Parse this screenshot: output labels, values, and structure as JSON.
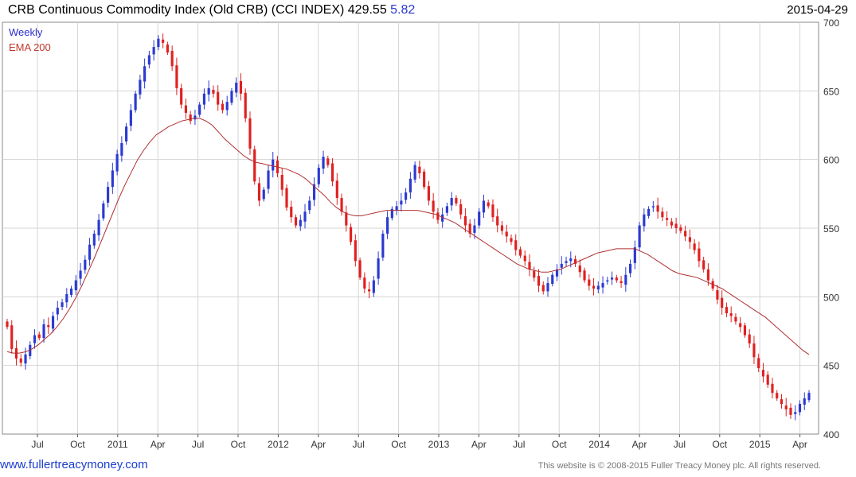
{
  "header": {
    "title": "CRB Continuous Commodity Index (Old CRB) (CCI INDEX) 429.55",
    "change": "5.82",
    "date": "2015-04-29"
  },
  "footer": {
    "site": "www.fullertreacymoney.com",
    "copyright": "This website is © 2008-2015 Fuller Treacy Money plc. All rights reserved."
  },
  "colors": {
    "up": "#2b3ad1",
    "down": "#e02020",
    "ema": "#b03030",
    "grid": "#d4d4d4"
  },
  "chart_data": {
    "type": "candlestick",
    "frequency": "Weekly",
    "legend": [
      "Weekly",
      "EMA 200"
    ],
    "legend_placement": "top-left",
    "grid": true,
    "y_axis": {
      "position": "right",
      "ylim": [
        400,
        700
      ],
      "ticks": [
        400,
        450,
        500,
        550,
        600,
        650,
        700
      ]
    },
    "x_axis": {
      "ticks": [
        "Jul",
        "Oct",
        "2011",
        "Apr",
        "Jul",
        "Oct",
        "2012",
        "Apr",
        "Jul",
        "Oct",
        "2013",
        "Apr",
        "Jul",
        "Oct",
        "2014",
        "Apr",
        "Jul",
        "Oct",
        "2015",
        "Apr"
      ],
      "range": [
        "2010-04",
        "2015-04"
      ]
    },
    "close": [
      478,
      462,
      455,
      452,
      458,
      465,
      472,
      470,
      480,
      478,
      486,
      492,
      496,
      502,
      506,
      512,
      519,
      527,
      538,
      546,
      556,
      568,
      580,
      592,
      604,
      612,
      624,
      636,
      648,
      658,
      668,
      676,
      682,
      688,
      685,
      678,
      668,
      652,
      640,
      634,
      628,
      632,
      640,
      648,
      652,
      648,
      640,
      636,
      642,
      650,
      656,
      648,
      630,
      608,
      584,
      570,
      578,
      592,
      600,
      590,
      578,
      565,
      558,
      552,
      556,
      562,
      570,
      582,
      594,
      602,
      596,
      584,
      572,
      562,
      552,
      540,
      526,
      514,
      506,
      504,
      512,
      528,
      546,
      558,
      564,
      566,
      570,
      576,
      586,
      596,
      590,
      580,
      570,
      562,
      556,
      560,
      566,
      572,
      568,
      560,
      552,
      546,
      552,
      562,
      570,
      566,
      558,
      552,
      548,
      544,
      540,
      534,
      530,
      526,
      520,
      514,
      508,
      504,
      510,
      516,
      520,
      524,
      526,
      528,
      524,
      518,
      512,
      508,
      506,
      508,
      510,
      512,
      514,
      512,
      510,
      516,
      524,
      536,
      552,
      560,
      564,
      566,
      562,
      558,
      556,
      552,
      550,
      548,
      544,
      540,
      534,
      526,
      520,
      512,
      506,
      498,
      492,
      488,
      486,
      482,
      478,
      472,
      466,
      456,
      448,
      442,
      436,
      430,
      426,
      422,
      418,
      414,
      416,
      422,
      426,
      430
    ],
    "ema_200": [
      460,
      459,
      459,
      460,
      462,
      465,
      469,
      473,
      478,
      484,
      491,
      499,
      508,
      518,
      528,
      539,
      550,
      561,
      572,
      582,
      591,
      600,
      607,
      613,
      618,
      621,
      624,
      626,
      628,
      629,
      630,
      630,
      628,
      625,
      620,
      615,
      611,
      607,
      603,
      600,
      598,
      597,
      596,
      595,
      594,
      593,
      591,
      589,
      586,
      582,
      578,
      574,
      569,
      565,
      562,
      560,
      559,
      559,
      560,
      561,
      562,
      563,
      563,
      563,
      563,
      563,
      563,
      562,
      561,
      560,
      558,
      556,
      554,
      551,
      548,
      545,
      542,
      539,
      536,
      533,
      530,
      527,
      524,
      522,
      520,
      519,
      518,
      518,
      519,
      520,
      522,
      524,
      526,
      528,
      530,
      532,
      533,
      534,
      535,
      535,
      535,
      535,
      533,
      531,
      528,
      525,
      522,
      519,
      517,
      516,
      515,
      514,
      512,
      510,
      508,
      506,
      503,
      500,
      497,
      494,
      491,
      488,
      485,
      481,
      477,
      473,
      469,
      465,
      461,
      458
    ]
  }
}
